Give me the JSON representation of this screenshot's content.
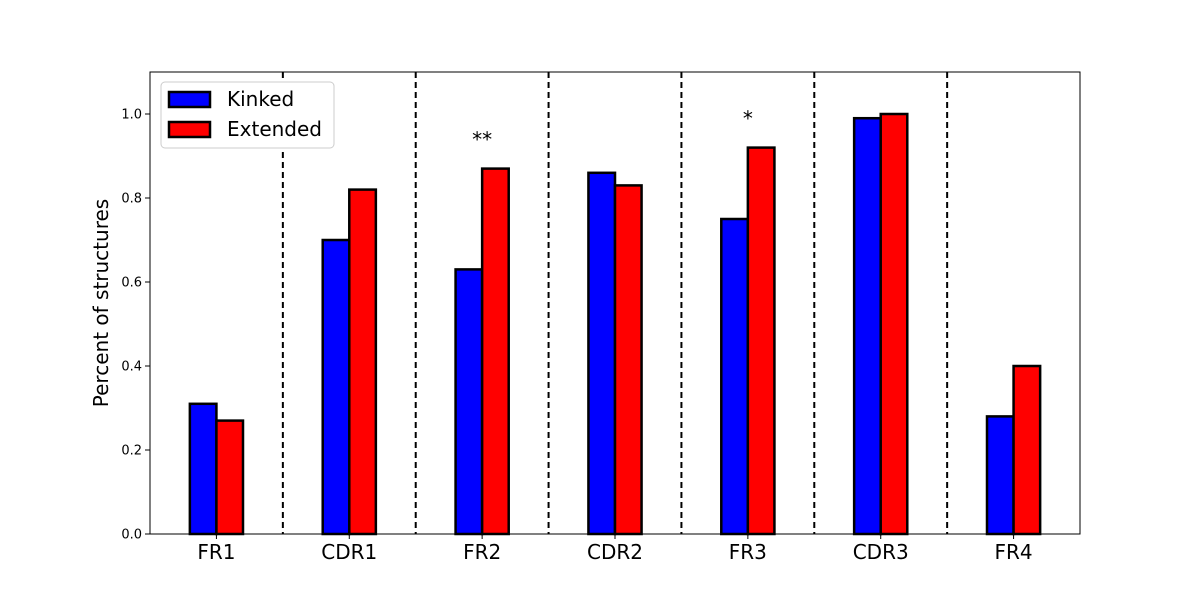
{
  "chart_data": {
    "type": "bar",
    "categories": [
      "FR1",
      "CDR1",
      "FR2",
      "CDR2",
      "FR3",
      "CDR3",
      "FR4"
    ],
    "series": [
      {
        "name": "Kinked",
        "color": "#0000ff",
        "values": [
          0.31,
          0.7,
          0.63,
          0.86,
          0.75,
          0.99,
          0.28
        ]
      },
      {
        "name": "Extended",
        "color": "#ff0000",
        "values": [
          0.27,
          0.82,
          0.87,
          0.83,
          0.92,
          1.0,
          0.4
        ]
      }
    ],
    "xlabel": "",
    "ylabel": "Percent of structures",
    "ylim": [
      0,
      1.1
    ],
    "yticks": [
      "0.0",
      "0.2",
      "0.4",
      "0.6",
      "0.8",
      "1.0"
    ],
    "grid": false,
    "legend_position": "top-left",
    "separators": "dashed vertical lines between categories",
    "annotations": [
      {
        "category": "FR2",
        "text": "**"
      },
      {
        "category": "FR3",
        "text": "*"
      }
    ]
  }
}
